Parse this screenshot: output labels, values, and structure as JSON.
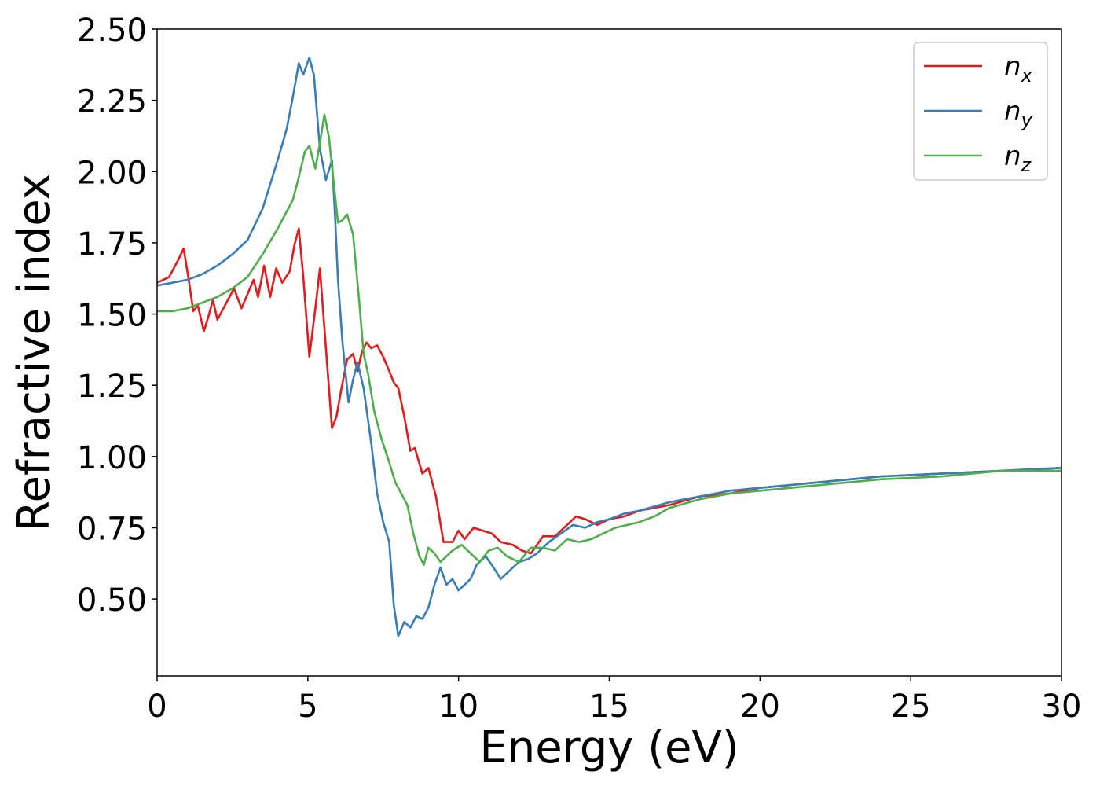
{
  "chart_data": {
    "type": "line",
    "xlabel": "Energy (eV)",
    "ylabel": "Refractive index",
    "xlim": [
      0,
      30
    ],
    "ylim": [
      0.23,
      2.5
    ],
    "xticks": [
      0,
      5,
      10,
      15,
      20,
      25,
      30
    ],
    "xtick_labels": [
      "0",
      "5",
      "10",
      "15",
      "20",
      "25",
      "30"
    ],
    "yticks": [
      0.5,
      0.75,
      1.0,
      1.25,
      1.5,
      1.75,
      2.0,
      2.25,
      2.5
    ],
    "ytick_labels": [
      "0.50",
      "0.75",
      "1.00",
      "1.25",
      "1.50",
      "1.75",
      "2.00",
      "2.25",
      "2.50"
    ],
    "grid": false,
    "legend_position": "top-right",
    "series": [
      {
        "name": "n_x",
        "base": "n",
        "sub": "x",
        "color": "#e41a1c",
        "points": [
          [
            0,
            1.61
          ],
          [
            0.4,
            1.63
          ],
          [
            0.7,
            1.69
          ],
          [
            0.88,
            1.73
          ],
          [
            1.05,
            1.62
          ],
          [
            1.2,
            1.51
          ],
          [
            1.35,
            1.53
          ],
          [
            1.55,
            1.44
          ],
          [
            1.7,
            1.49
          ],
          [
            1.85,
            1.55
          ],
          [
            2.0,
            1.48
          ],
          [
            2.2,
            1.52
          ],
          [
            2.55,
            1.59
          ],
          [
            2.8,
            1.52
          ],
          [
            3.0,
            1.57
          ],
          [
            3.2,
            1.62
          ],
          [
            3.35,
            1.56
          ],
          [
            3.55,
            1.67
          ],
          [
            3.75,
            1.56
          ],
          [
            3.95,
            1.66
          ],
          [
            4.15,
            1.61
          ],
          [
            4.4,
            1.65
          ],
          [
            4.55,
            1.74
          ],
          [
            4.7,
            1.8
          ],
          [
            4.85,
            1.63
          ],
          [
            5.05,
            1.35
          ],
          [
            5.25,
            1.52
          ],
          [
            5.4,
            1.66
          ],
          [
            5.55,
            1.45
          ],
          [
            5.8,
            1.1
          ],
          [
            5.95,
            1.14
          ],
          [
            6.1,
            1.23
          ],
          [
            6.3,
            1.34
          ],
          [
            6.5,
            1.36
          ],
          [
            6.65,
            1.3
          ],
          [
            6.8,
            1.37
          ],
          [
            6.95,
            1.4
          ],
          [
            7.1,
            1.38
          ],
          [
            7.3,
            1.39
          ],
          [
            7.5,
            1.35
          ],
          [
            7.7,
            1.3
          ],
          [
            7.85,
            1.26
          ],
          [
            8.0,
            1.24
          ],
          [
            8.2,
            1.14
          ],
          [
            8.4,
            1.02
          ],
          [
            8.55,
            1.03
          ],
          [
            8.8,
            0.94
          ],
          [
            9.0,
            0.96
          ],
          [
            9.25,
            0.86
          ],
          [
            9.5,
            0.7
          ],
          [
            9.8,
            0.7
          ],
          [
            10.0,
            0.74
          ],
          [
            10.2,
            0.71
          ],
          [
            10.5,
            0.75
          ],
          [
            10.8,
            0.74
          ],
          [
            11.1,
            0.73
          ],
          [
            11.4,
            0.7
          ],
          [
            11.8,
            0.69
          ],
          [
            12.1,
            0.67
          ],
          [
            12.4,
            0.66
          ],
          [
            12.8,
            0.72
          ],
          [
            13.2,
            0.72
          ],
          [
            13.6,
            0.76
          ],
          [
            13.9,
            0.79
          ],
          [
            14.2,
            0.78
          ],
          [
            14.6,
            0.76
          ],
          [
            15.0,
            0.78
          ],
          [
            15.5,
            0.79
          ],
          [
            16.0,
            0.81
          ],
          [
            17.0,
            0.83
          ],
          [
            18.0,
            0.86
          ],
          [
            19.0,
            0.87
          ],
          [
            20.0,
            0.89
          ],
          [
            22.0,
            0.91
          ],
          [
            24.0,
            0.93
          ],
          [
            26.0,
            0.94
          ],
          [
            28.0,
            0.95
          ],
          [
            30.0,
            0.96
          ]
        ]
      },
      {
        "name": "n_y",
        "base": "n",
        "sub": "y",
        "color": "#377eb8",
        "points": [
          [
            0,
            1.6
          ],
          [
            0.5,
            1.61
          ],
          [
            1.0,
            1.62
          ],
          [
            1.5,
            1.64
          ],
          [
            2.0,
            1.67
          ],
          [
            2.5,
            1.71
          ],
          [
            3.0,
            1.76
          ],
          [
            3.5,
            1.87
          ],
          [
            4.0,
            2.04
          ],
          [
            4.3,
            2.15
          ],
          [
            4.5,
            2.26
          ],
          [
            4.7,
            2.38
          ],
          [
            4.85,
            2.34
          ],
          [
            5.05,
            2.4
          ],
          [
            5.2,
            2.34
          ],
          [
            5.4,
            2.08
          ],
          [
            5.6,
            1.97
          ],
          [
            5.8,
            2.04
          ],
          [
            5.9,
            1.85
          ],
          [
            6.0,
            1.62
          ],
          [
            6.15,
            1.4
          ],
          [
            6.35,
            1.19
          ],
          [
            6.5,
            1.27
          ],
          [
            6.65,
            1.33
          ],
          [
            6.85,
            1.24
          ],
          [
            7.1,
            1.05
          ],
          [
            7.3,
            0.87
          ],
          [
            7.5,
            0.77
          ],
          [
            7.7,
            0.7
          ],
          [
            7.85,
            0.48
          ],
          [
            8.0,
            0.37
          ],
          [
            8.2,
            0.42
          ],
          [
            8.4,
            0.4
          ],
          [
            8.6,
            0.44
          ],
          [
            8.8,
            0.43
          ],
          [
            9.0,
            0.47
          ],
          [
            9.2,
            0.55
          ],
          [
            9.4,
            0.61
          ],
          [
            9.6,
            0.55
          ],
          [
            9.8,
            0.57
          ],
          [
            10.0,
            0.53
          ],
          [
            10.2,
            0.55
          ],
          [
            10.4,
            0.57
          ],
          [
            10.6,
            0.62
          ],
          [
            10.9,
            0.65
          ],
          [
            11.1,
            0.62
          ],
          [
            11.4,
            0.57
          ],
          [
            11.7,
            0.6
          ],
          [
            12.0,
            0.63
          ],
          [
            12.3,
            0.64
          ],
          [
            12.6,
            0.66
          ],
          [
            13.0,
            0.7
          ],
          [
            13.4,
            0.73
          ],
          [
            13.8,
            0.76
          ],
          [
            14.2,
            0.75
          ],
          [
            14.6,
            0.77
          ],
          [
            15.0,
            0.78
          ],
          [
            15.5,
            0.8
          ],
          [
            16.0,
            0.81
          ],
          [
            17.0,
            0.84
          ],
          [
            18.0,
            0.86
          ],
          [
            19.0,
            0.88
          ],
          [
            20.0,
            0.89
          ],
          [
            22.0,
            0.91
          ],
          [
            24.0,
            0.93
          ],
          [
            26.0,
            0.94
          ],
          [
            28.0,
            0.95
          ],
          [
            30.0,
            0.96
          ]
        ]
      },
      {
        "name": "n_z",
        "base": "n",
        "sub": "z",
        "color": "#4daf4a",
        "points": [
          [
            0,
            1.51
          ],
          [
            0.5,
            1.51
          ],
          [
            1.0,
            1.52
          ],
          [
            1.5,
            1.54
          ],
          [
            2.0,
            1.56
          ],
          [
            2.5,
            1.59
          ],
          [
            3.0,
            1.63
          ],
          [
            3.5,
            1.71
          ],
          [
            4.0,
            1.8
          ],
          [
            4.3,
            1.86
          ],
          [
            4.5,
            1.9
          ],
          [
            4.7,
            1.98
          ],
          [
            4.9,
            2.07
          ],
          [
            5.05,
            2.09
          ],
          [
            5.25,
            2.01
          ],
          [
            5.4,
            2.1
          ],
          [
            5.55,
            2.2
          ],
          [
            5.7,
            2.12
          ],
          [
            5.85,
            1.97
          ],
          [
            6.0,
            1.82
          ],
          [
            6.15,
            1.83
          ],
          [
            6.3,
            1.85
          ],
          [
            6.5,
            1.78
          ],
          [
            6.7,
            1.55
          ],
          [
            6.85,
            1.36
          ],
          [
            7.0,
            1.29
          ],
          [
            7.2,
            1.16
          ],
          [
            7.45,
            1.06
          ],
          [
            7.7,
            0.98
          ],
          [
            7.9,
            0.91
          ],
          [
            8.1,
            0.87
          ],
          [
            8.3,
            0.83
          ],
          [
            8.5,
            0.73
          ],
          [
            8.7,
            0.65
          ],
          [
            8.85,
            0.62
          ],
          [
            9.0,
            0.68
          ],
          [
            9.2,
            0.66
          ],
          [
            9.4,
            0.63
          ],
          [
            9.6,
            0.65
          ],
          [
            9.8,
            0.67
          ],
          [
            10.1,
            0.69
          ],
          [
            10.4,
            0.66
          ],
          [
            10.7,
            0.63
          ],
          [
            11.0,
            0.67
          ],
          [
            11.3,
            0.68
          ],
          [
            11.6,
            0.65
          ],
          [
            12.0,
            0.63
          ],
          [
            12.4,
            0.68
          ],
          [
            12.8,
            0.68
          ],
          [
            13.2,
            0.67
          ],
          [
            13.6,
            0.71
          ],
          [
            14.0,
            0.7
          ],
          [
            14.4,
            0.71
          ],
          [
            14.8,
            0.73
          ],
          [
            15.2,
            0.75
          ],
          [
            15.6,
            0.76
          ],
          [
            16.0,
            0.77
          ],
          [
            16.5,
            0.79
          ],
          [
            17.0,
            0.82
          ],
          [
            18.0,
            0.85
          ],
          [
            19.0,
            0.87
          ],
          [
            20.0,
            0.88
          ],
          [
            22.0,
            0.9
          ],
          [
            24.0,
            0.92
          ],
          [
            26.0,
            0.93
          ],
          [
            28.0,
            0.95
          ],
          [
            30.0,
            0.95
          ]
        ]
      }
    ]
  }
}
